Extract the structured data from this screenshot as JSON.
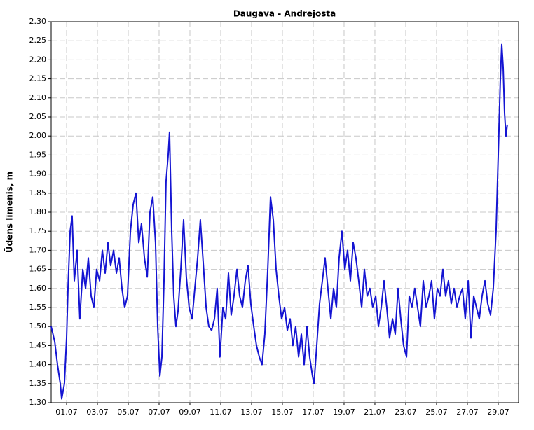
{
  "chart_data": {
    "type": "line",
    "title": "Daugava - Andrejosta",
    "y_label": "Ūdens līmenis, m",
    "x": [
      0,
      0.23,
      0.41,
      0.59,
      0.68,
      0.86,
      1.0,
      1.09,
      1.23,
      1.36,
      1.5,
      1.68,
      1.86,
      2.05,
      2.23,
      2.41,
      2.59,
      2.77,
      2.95,
      3.14,
      3.32,
      3.5,
      3.68,
      3.86,
      4.05,
      4.23,
      4.41,
      4.59,
      4.77,
      4.95,
      5.14,
      5.32,
      5.5,
      5.68,
      5.86,
      6.05,
      6.23,
      6.41,
      6.59,
      6.77,
      6.91,
      7.05,
      7.18,
      7.32,
      7.45,
      7.59,
      7.68,
      7.82,
      7.95,
      8.09,
      8.23,
      8.41,
      8.59,
      8.77,
      8.95,
      9.14,
      9.32,
      9.5,
      9.68,
      9.86,
      10.05,
      10.23,
      10.41,
      10.59,
      10.77,
      10.95,
      11.14,
      11.32,
      11.5,
      11.68,
      11.86,
      12.05,
      12.23,
      12.41,
      12.59,
      12.77,
      12.95,
      13.14,
      13.32,
      13.5,
      13.68,
      13.86,
      14.05,
      14.23,
      14.41,
      14.59,
      14.77,
      14.95,
      15.14,
      15.32,
      15.5,
      15.68,
      15.86,
      16.05,
      16.23,
      16.41,
      16.59,
      16.77,
      16.95,
      17.05,
      17.23,
      17.41,
      17.59,
      17.77,
      17.95,
      18.14,
      18.32,
      18.5,
      18.68,
      18.86,
      19.05,
      19.23,
      19.41,
      19.59,
      19.77,
      19.95,
      20.14,
      20.32,
      20.5,
      20.68,
      20.86,
      21.05,
      21.23,
      21.41,
      21.59,
      21.77,
      21.95,
      22.14,
      22.32,
      22.5,
      22.68,
      22.86,
      23.05,
      23.23,
      23.41,
      23.59,
      23.77,
      23.95,
      24.14,
      24.32,
      24.5,
      24.68,
      24.86,
      25.05,
      25.23,
      25.41,
      25.59,
      25.77,
      25.95,
      26.14,
      26.32,
      26.5,
      26.68,
      26.86,
      27.05,
      27.23,
      27.41,
      27.59,
      27.77,
      27.95,
      28.14,
      28.32,
      28.5,
      28.68,
      28.86,
      29.0,
      29.14,
      29.23,
      29.32,
      29.41,
      29.5,
      29.59
    ],
    "series": [
      {
        "color": "#1414d2",
        "values": [
          1.5,
          1.46,
          1.4,
          1.35,
          1.31,
          1.35,
          1.47,
          1.6,
          1.75,
          1.79,
          1.62,
          1.7,
          1.52,
          1.65,
          1.6,
          1.68,
          1.58,
          1.55,
          1.65,
          1.62,
          1.7,
          1.64,
          1.72,
          1.66,
          1.7,
          1.64,
          1.68,
          1.6,
          1.55,
          1.58,
          1.75,
          1.82,
          1.85,
          1.72,
          1.77,
          1.68,
          1.63,
          1.8,
          1.84,
          1.72,
          1.5,
          1.37,
          1.42,
          1.62,
          1.88,
          1.95,
          2.01,
          1.75,
          1.58,
          1.5,
          1.54,
          1.65,
          1.78,
          1.63,
          1.55,
          1.52,
          1.6,
          1.68,
          1.78,
          1.67,
          1.55,
          1.5,
          1.49,
          1.52,
          1.6,
          1.42,
          1.55,
          1.52,
          1.64,
          1.53,
          1.58,
          1.65,
          1.58,
          1.55,
          1.62,
          1.66,
          1.56,
          1.5,
          1.45,
          1.42,
          1.4,
          1.48,
          1.65,
          1.84,
          1.78,
          1.65,
          1.58,
          1.52,
          1.55,
          1.49,
          1.52,
          1.45,
          1.5,
          1.42,
          1.48,
          1.4,
          1.5,
          1.42,
          1.37,
          1.35,
          1.45,
          1.56,
          1.62,
          1.68,
          1.6,
          1.52,
          1.6,
          1.55,
          1.68,
          1.75,
          1.65,
          1.7,
          1.62,
          1.72,
          1.68,
          1.62,
          1.55,
          1.65,
          1.58,
          1.6,
          1.55,
          1.58,
          1.5,
          1.55,
          1.62,
          1.55,
          1.47,
          1.52,
          1.48,
          1.6,
          1.52,
          1.45,
          1.42,
          1.58,
          1.55,
          1.6,
          1.55,
          1.5,
          1.62,
          1.55,
          1.58,
          1.62,
          1.52,
          1.6,
          1.58,
          1.65,
          1.58,
          1.62,
          1.56,
          1.6,
          1.55,
          1.58,
          1.6,
          1.52,
          1.62,
          1.47,
          1.58,
          1.55,
          1.52,
          1.58,
          1.62,
          1.56,
          1.53,
          1.6,
          1.75,
          1.95,
          2.15,
          2.24,
          2.18,
          2.06,
          2.0,
          2.03
        ]
      }
    ],
    "xlim": [
      0,
      30.32
    ],
    "xticks": [
      {
        "value": 1,
        "label": "01.07"
      },
      {
        "value": 3,
        "label": "03.07"
      },
      {
        "value": 5,
        "label": "05.07"
      },
      {
        "value": 7,
        "label": "07.07"
      },
      {
        "value": 9,
        "label": "09.07"
      },
      {
        "value": 11,
        "label": "11.07"
      },
      {
        "value": 13,
        "label": "13.07"
      },
      {
        "value": 15,
        "label": "15.07"
      },
      {
        "value": 17,
        "label": "17.07"
      },
      {
        "value": 19,
        "label": "19.07"
      },
      {
        "value": 21,
        "label": "21.07"
      },
      {
        "value": 23,
        "label": "23.07"
      },
      {
        "value": 25,
        "label": "25.07"
      },
      {
        "value": 27,
        "label": "27.07"
      },
      {
        "value": 29,
        "label": "29.07"
      }
    ],
    "ylim": [
      1.3,
      2.3
    ],
    "yticks": [
      {
        "value": 1.3,
        "label": "1.30"
      },
      1.35,
      {
        "value": 1.4,
        "label": "1.40"
      },
      1.45,
      {
        "value": 1.5,
        "label": "1.50"
      },
      1.55,
      {
        "value": 1.6,
        "label": "1.60"
      },
      1.65,
      {
        "value": 1.7,
        "label": "1.70"
      },
      1.75,
      {
        "value": 1.8,
        "label": "1.80"
      },
      1.85,
      {
        "value": 1.9,
        "label": "1.90"
      },
      1.95,
      {
        "value": 2.0,
        "label": "2.00"
      },
      2.05,
      {
        "value": 2.1,
        "label": "2.10"
      },
      2.15,
      {
        "value": 2.2,
        "label": "2.20"
      },
      2.25,
      {
        "value": 2.3,
        "label": "2.30"
      }
    ],
    "grid": true
  }
}
